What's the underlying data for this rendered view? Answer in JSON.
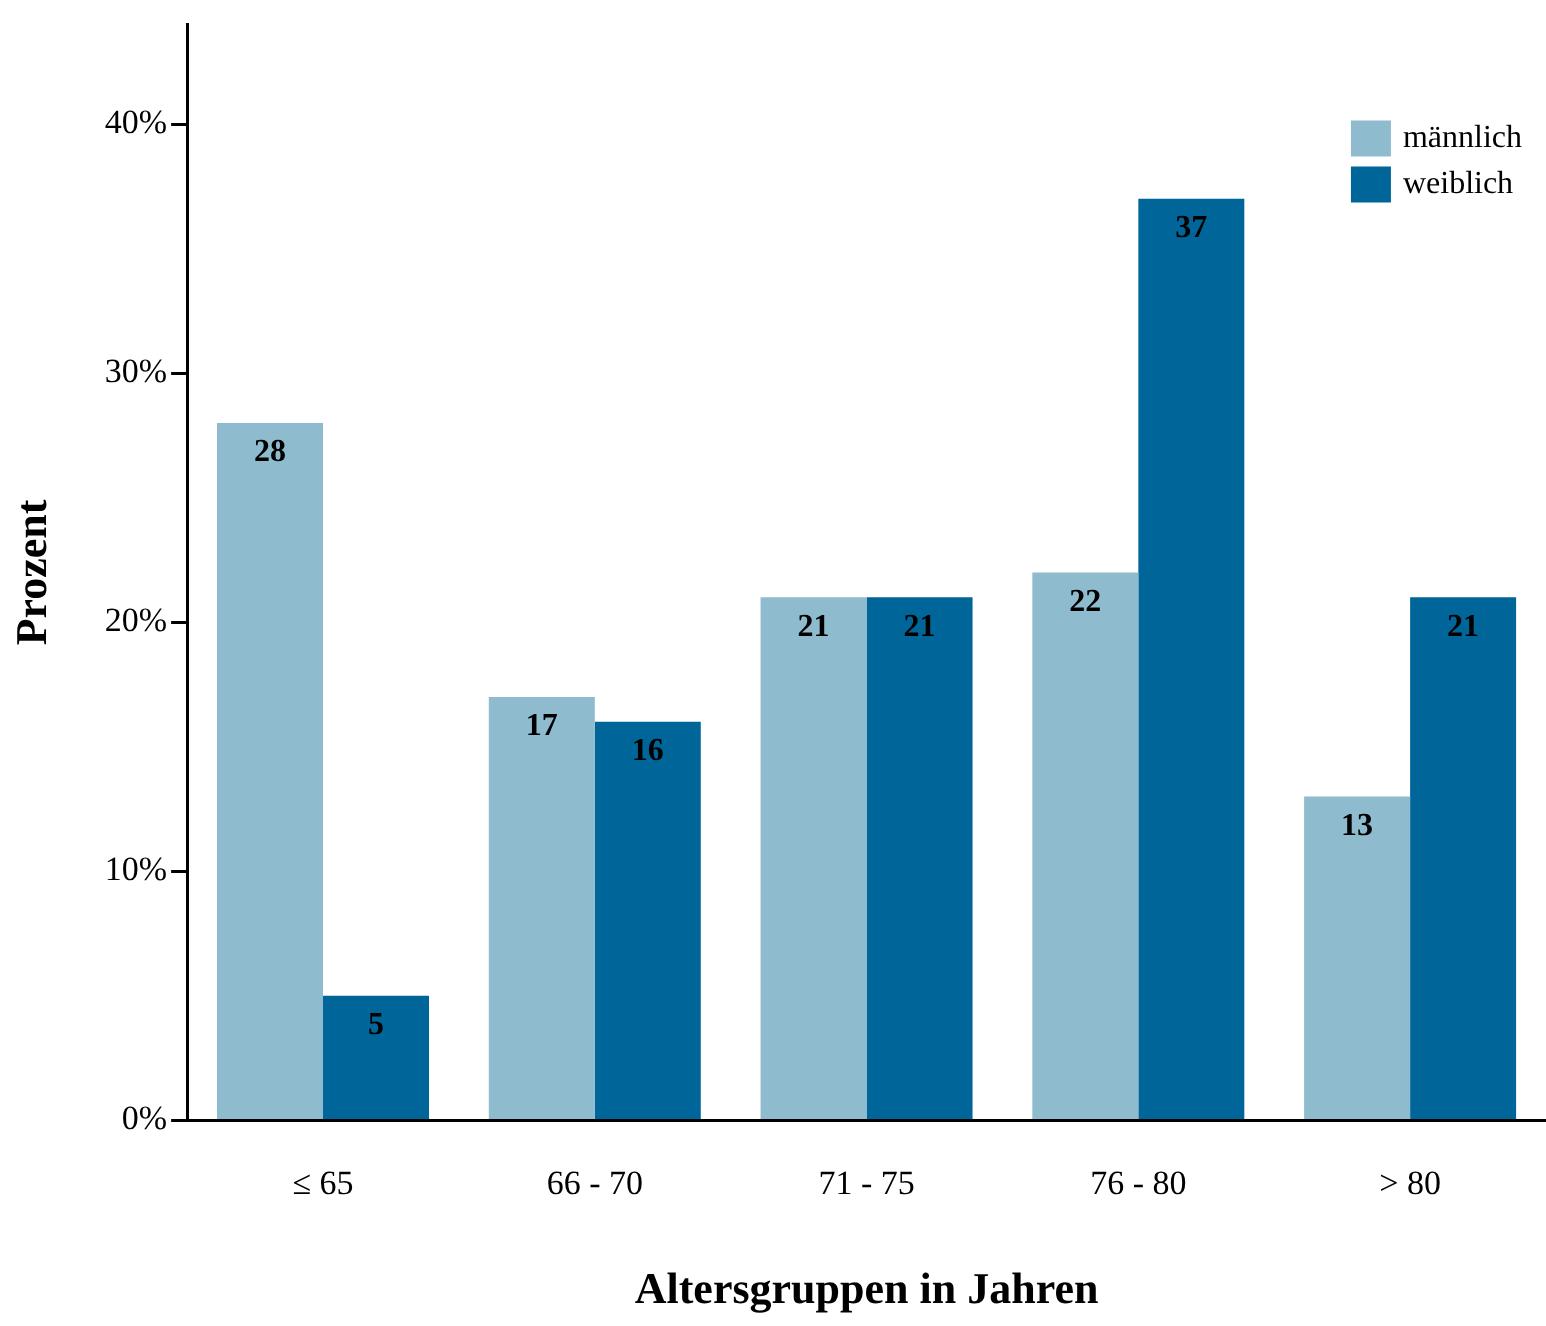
{
  "chart_data": {
    "type": "bar",
    "xlabel": "Altersgruppen in Jahren",
    "ylabel": "Prozent",
    "categories": [
      "≤ 65",
      "66 - 70",
      "71 - 75",
      "76 - 80",
      "> 80"
    ],
    "series": [
      {
        "name": "männlich",
        "color": "#8fbbcf",
        "values": [
          28,
          17,
          21,
          22,
          13
        ]
      },
      {
        "name": "weiblich",
        "color": "#006699",
        "values": [
          5,
          16,
          21,
          37,
          21
        ]
      }
    ],
    "ylim": [
      0,
      44
    ],
    "yticks": [
      {
        "value": 0,
        "label": "0%"
      },
      {
        "value": 10,
        "label": "10%"
      },
      {
        "value": 20,
        "label": "20%"
      },
      {
        "value": 30,
        "label": "30%"
      },
      {
        "value": 40,
        "label": "40%"
      }
    ],
    "data_labels": true,
    "legend": "top right",
    "grid": false
  }
}
